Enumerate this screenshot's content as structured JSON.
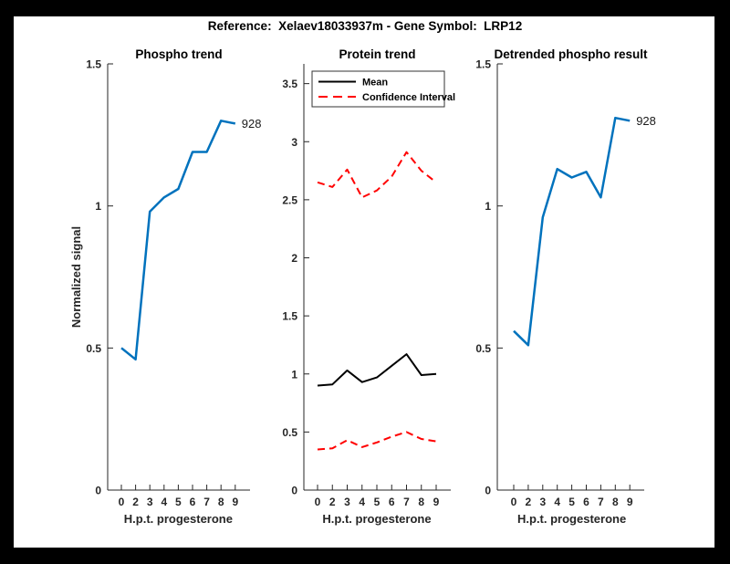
{
  "header": {
    "title": "Reference:  Xelaev18033937m - Gene Symbol:  LRP12"
  },
  "colors": {
    "background": "#000000",
    "figure": "#ffffff",
    "axis": "#262626",
    "blue": "#0072BD",
    "red": "#ff0000",
    "black": "#000000"
  },
  "chart_data": [
    {
      "type": "line",
      "title": "Phospho trend",
      "xlabel": "H.p.t. progesterone",
      "ylabel": "Normalized signal",
      "categories": [
        "0",
        "2",
        "3",
        "4",
        "5",
        "6",
        "7",
        "8",
        "9"
      ],
      "yticks": [
        0,
        0.5,
        1,
        1.5
      ],
      "ylim": [
        0,
        1.5
      ],
      "grid": false,
      "series": [
        {
          "name": "Phospho signal",
          "color": "blue",
          "dash": false,
          "width": 2.5,
          "values": [
            0.5,
            0.46,
            0.98,
            1.03,
            1.06,
            1.19,
            1.19,
            1.3,
            1.29
          ]
        }
      ],
      "annotation": "928",
      "legend": null
    },
    {
      "type": "line",
      "title": "Protein trend",
      "xlabel": "H.p.t. progesterone",
      "ylabel": "",
      "categories": [
        "0",
        "2",
        "3",
        "4",
        "5",
        "6",
        "7",
        "8",
        "9"
      ],
      "yticks": [
        0,
        0.5,
        1,
        1.5,
        2,
        2.5,
        3,
        3.5
      ],
      "ylim": [
        0,
        3.67
      ],
      "grid": false,
      "series": [
        {
          "name": "Mean",
          "color": "black",
          "dash": false,
          "width": 2,
          "values": [
            0.9,
            0.91,
            1.03,
            0.93,
            0.97,
            1.07,
            1.17,
            0.99,
            1.0
          ]
        },
        {
          "name": "Confidence Interval upper",
          "color": "red",
          "dash": true,
          "width": 2,
          "values": [
            2.65,
            2.61,
            2.76,
            2.52,
            2.58,
            2.7,
            2.91,
            2.75,
            2.65
          ]
        },
        {
          "name": "Confidence Interval lower",
          "color": "red",
          "dash": true,
          "width": 2,
          "values": [
            0.35,
            0.36,
            0.43,
            0.37,
            0.41,
            0.46,
            0.5,
            0.44,
            0.42
          ]
        }
      ],
      "annotation": null,
      "legend": {
        "position": "top-left",
        "entries": [
          {
            "label": "Mean",
            "color": "black",
            "dash": false
          },
          {
            "label": "Confidence Interval",
            "color": "red",
            "dash": true
          }
        ]
      }
    },
    {
      "type": "line",
      "title": "Detrended phospho result",
      "xlabel": "H.p.t. progesterone",
      "ylabel": "",
      "categories": [
        "0",
        "2",
        "3",
        "4",
        "5",
        "6",
        "7",
        "8",
        "9"
      ],
      "yticks": [
        0,
        0.5,
        1,
        1.5
      ],
      "ylim": [
        0,
        1.5
      ],
      "grid": false,
      "series": [
        {
          "name": "Detrended phospho signal",
          "color": "blue",
          "dash": false,
          "width": 2.5,
          "values": [
            0.56,
            0.51,
            0.96,
            1.13,
            1.1,
            1.12,
            1.03,
            1.31,
            1.3
          ]
        }
      ],
      "annotation": "928",
      "legend": null
    }
  ]
}
